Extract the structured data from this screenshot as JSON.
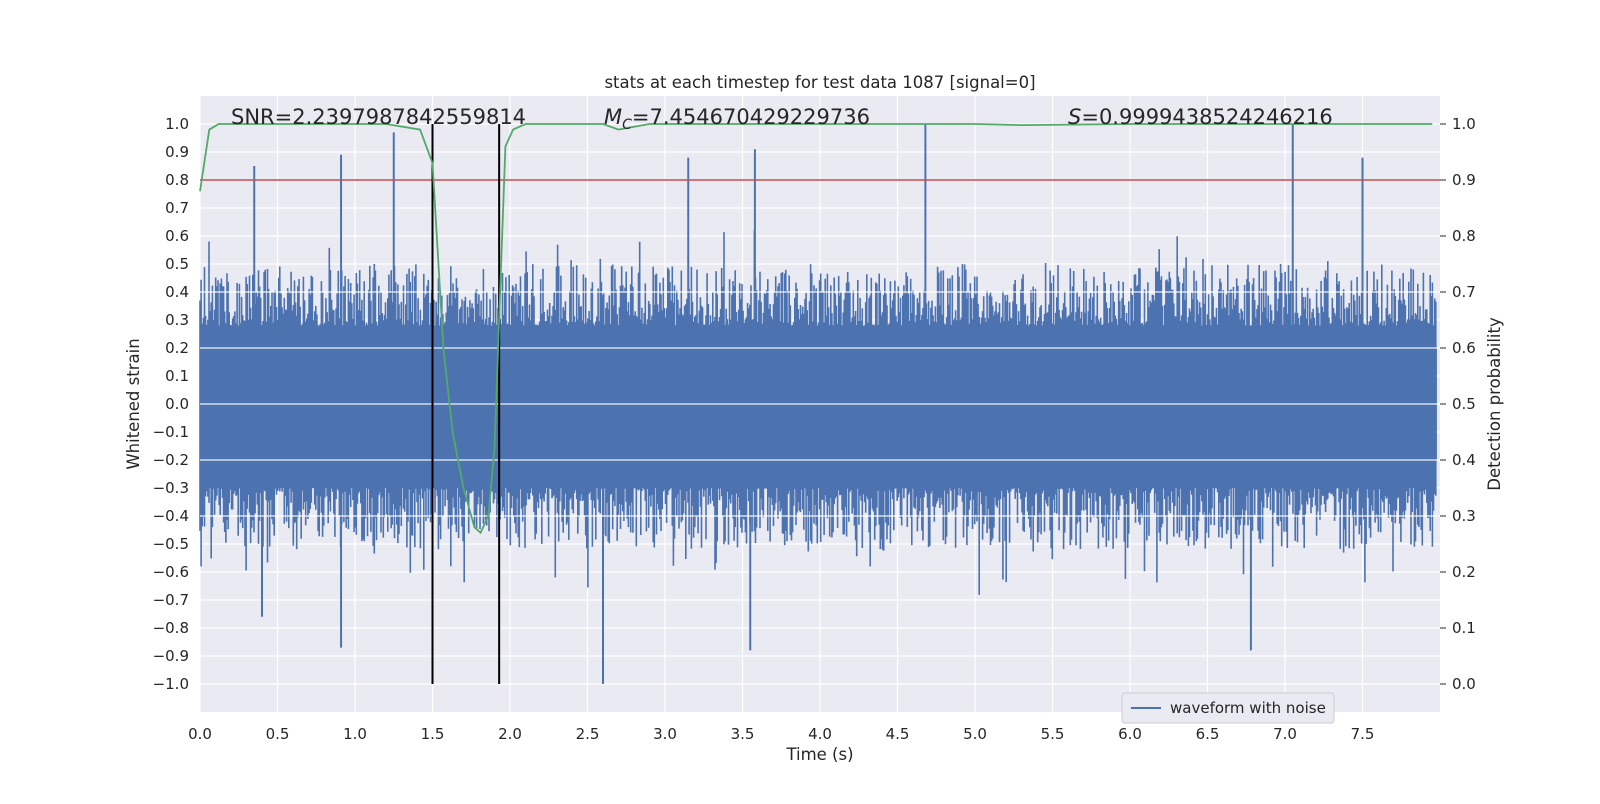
{
  "chart_data": {
    "type": "line",
    "title": "stats at each timestep for test data 1087 [signal=0]",
    "xlabel": "Time (s)",
    "ylabel": "Whitened strain",
    "ylabel_right": "Detection probability",
    "xlim": [
      0.0,
      8.0
    ],
    "ylim": [
      -1.1,
      1.1
    ],
    "ylim_right": [
      -0.05,
      1.05
    ],
    "xticks": [
      "0.0",
      "0.5",
      "1.0",
      "1.5",
      "2.0",
      "2.5",
      "3.0",
      "3.5",
      "4.0",
      "4.5",
      "5.0",
      "5.5",
      "6.0",
      "6.5",
      "7.0",
      "7.5"
    ],
    "xtick_values": [
      0.0,
      0.5,
      1.0,
      1.5,
      2.0,
      2.5,
      3.0,
      3.5,
      4.0,
      4.5,
      5.0,
      5.5,
      6.0,
      6.5,
      7.0,
      7.5
    ],
    "yticks": [
      "1.0",
      "0.9",
      "0.8",
      "0.7",
      "0.6",
      "0.5",
      "0.4",
      "0.3",
      "0.2",
      "0.1",
      "0.0",
      "−0.1",
      "−0.2",
      "−0.3",
      "−0.4",
      "−0.5",
      "−0.6",
      "−0.7",
      "−0.8",
      "−0.9",
      "−1.0"
    ],
    "ytick_values": [
      1.0,
      0.9,
      0.8,
      0.7,
      0.6,
      0.5,
      0.4,
      0.3,
      0.2,
      0.1,
      0.0,
      -0.1,
      -0.2,
      -0.3,
      -0.4,
      -0.5,
      -0.6,
      -0.7,
      -0.8,
      -0.9,
      -1.0
    ],
    "yticks_right": [
      "1.0",
      "0.9",
      "0.8",
      "0.7",
      "0.6",
      "0.5",
      "0.4",
      "0.3",
      "0.2",
      "0.1",
      "0.0"
    ],
    "ytick_right_values": [
      1.0,
      0.9,
      0.8,
      0.7,
      0.6,
      0.5,
      0.4,
      0.3,
      0.2,
      0.1,
      0.0
    ],
    "grid": true,
    "legend": {
      "position": "bottom-right",
      "entries": [
        "waveform with noise"
      ]
    },
    "annotations": {
      "snr": "SNR=2.2397987842559814",
      "mc_symbol": "M",
      "mc_subscript": "C",
      "mc_value": "=7.454670429229736",
      "s_symbol": "S",
      "s_value": "=0.9999438524246216"
    },
    "vertical_lines": [
      1.5,
      1.93
    ],
    "threshold_right": 0.9,
    "series": [
      {
        "name": "waveform with noise",
        "axis": "left",
        "color": "#4c72b0",
        "description": "whitened strain noise, band roughly ±0.3 to ±0.5 with spikes",
        "envelope_peaks": [
          {
            "x": 0.35,
            "y": 0.85
          },
          {
            "x": 0.91,
            "y": 0.89
          },
          {
            "x": 1.25,
            "y": 0.97
          },
          {
            "x": 3.15,
            "y": 0.88
          },
          {
            "x": 3.58,
            "y": 0.91
          },
          {
            "x": 4.68,
            "y": 1.0
          },
          {
            "x": 7.05,
            "y": 1.0
          },
          {
            "x": 7.5,
            "y": 0.88
          },
          {
            "x": 0.91,
            "y": -0.87
          },
          {
            "x": 2.6,
            "y": -1.0
          },
          {
            "x": 3.55,
            "y": -0.88
          },
          {
            "x": 6.78,
            "y": -0.88
          },
          {
            "x": 0.4,
            "y": -0.76
          }
        ]
      },
      {
        "name": "detection probability",
        "axis": "right",
        "color": "#55a868",
        "x": [
          0.0,
          0.06,
          0.12,
          0.3,
          1.2,
          1.42,
          1.5,
          1.57,
          1.63,
          1.7,
          1.77,
          1.81,
          1.86,
          1.9,
          1.93,
          1.97,
          2.02,
          2.1,
          2.6,
          2.7,
          2.9,
          4.5,
          5.0,
          5.3,
          6.0,
          7.0,
          7.95
        ],
        "y": [
          0.88,
          0.99,
          1.0,
          1.0,
          1.0,
          0.99,
          0.93,
          0.6,
          0.45,
          0.35,
          0.28,
          0.27,
          0.3,
          0.42,
          0.65,
          0.96,
          0.99,
          1.0,
          1.0,
          0.99,
          1.0,
          1.0,
          1.0,
          0.998,
          1.0,
          1.0,
          1.0
        ]
      }
    ],
    "colors": {
      "background": "#eaeaf2",
      "grid": "#ffffff",
      "waveform": "#4c72b0",
      "probability": "#55a868",
      "threshold": "#c44e52",
      "vline": "#000000"
    }
  }
}
